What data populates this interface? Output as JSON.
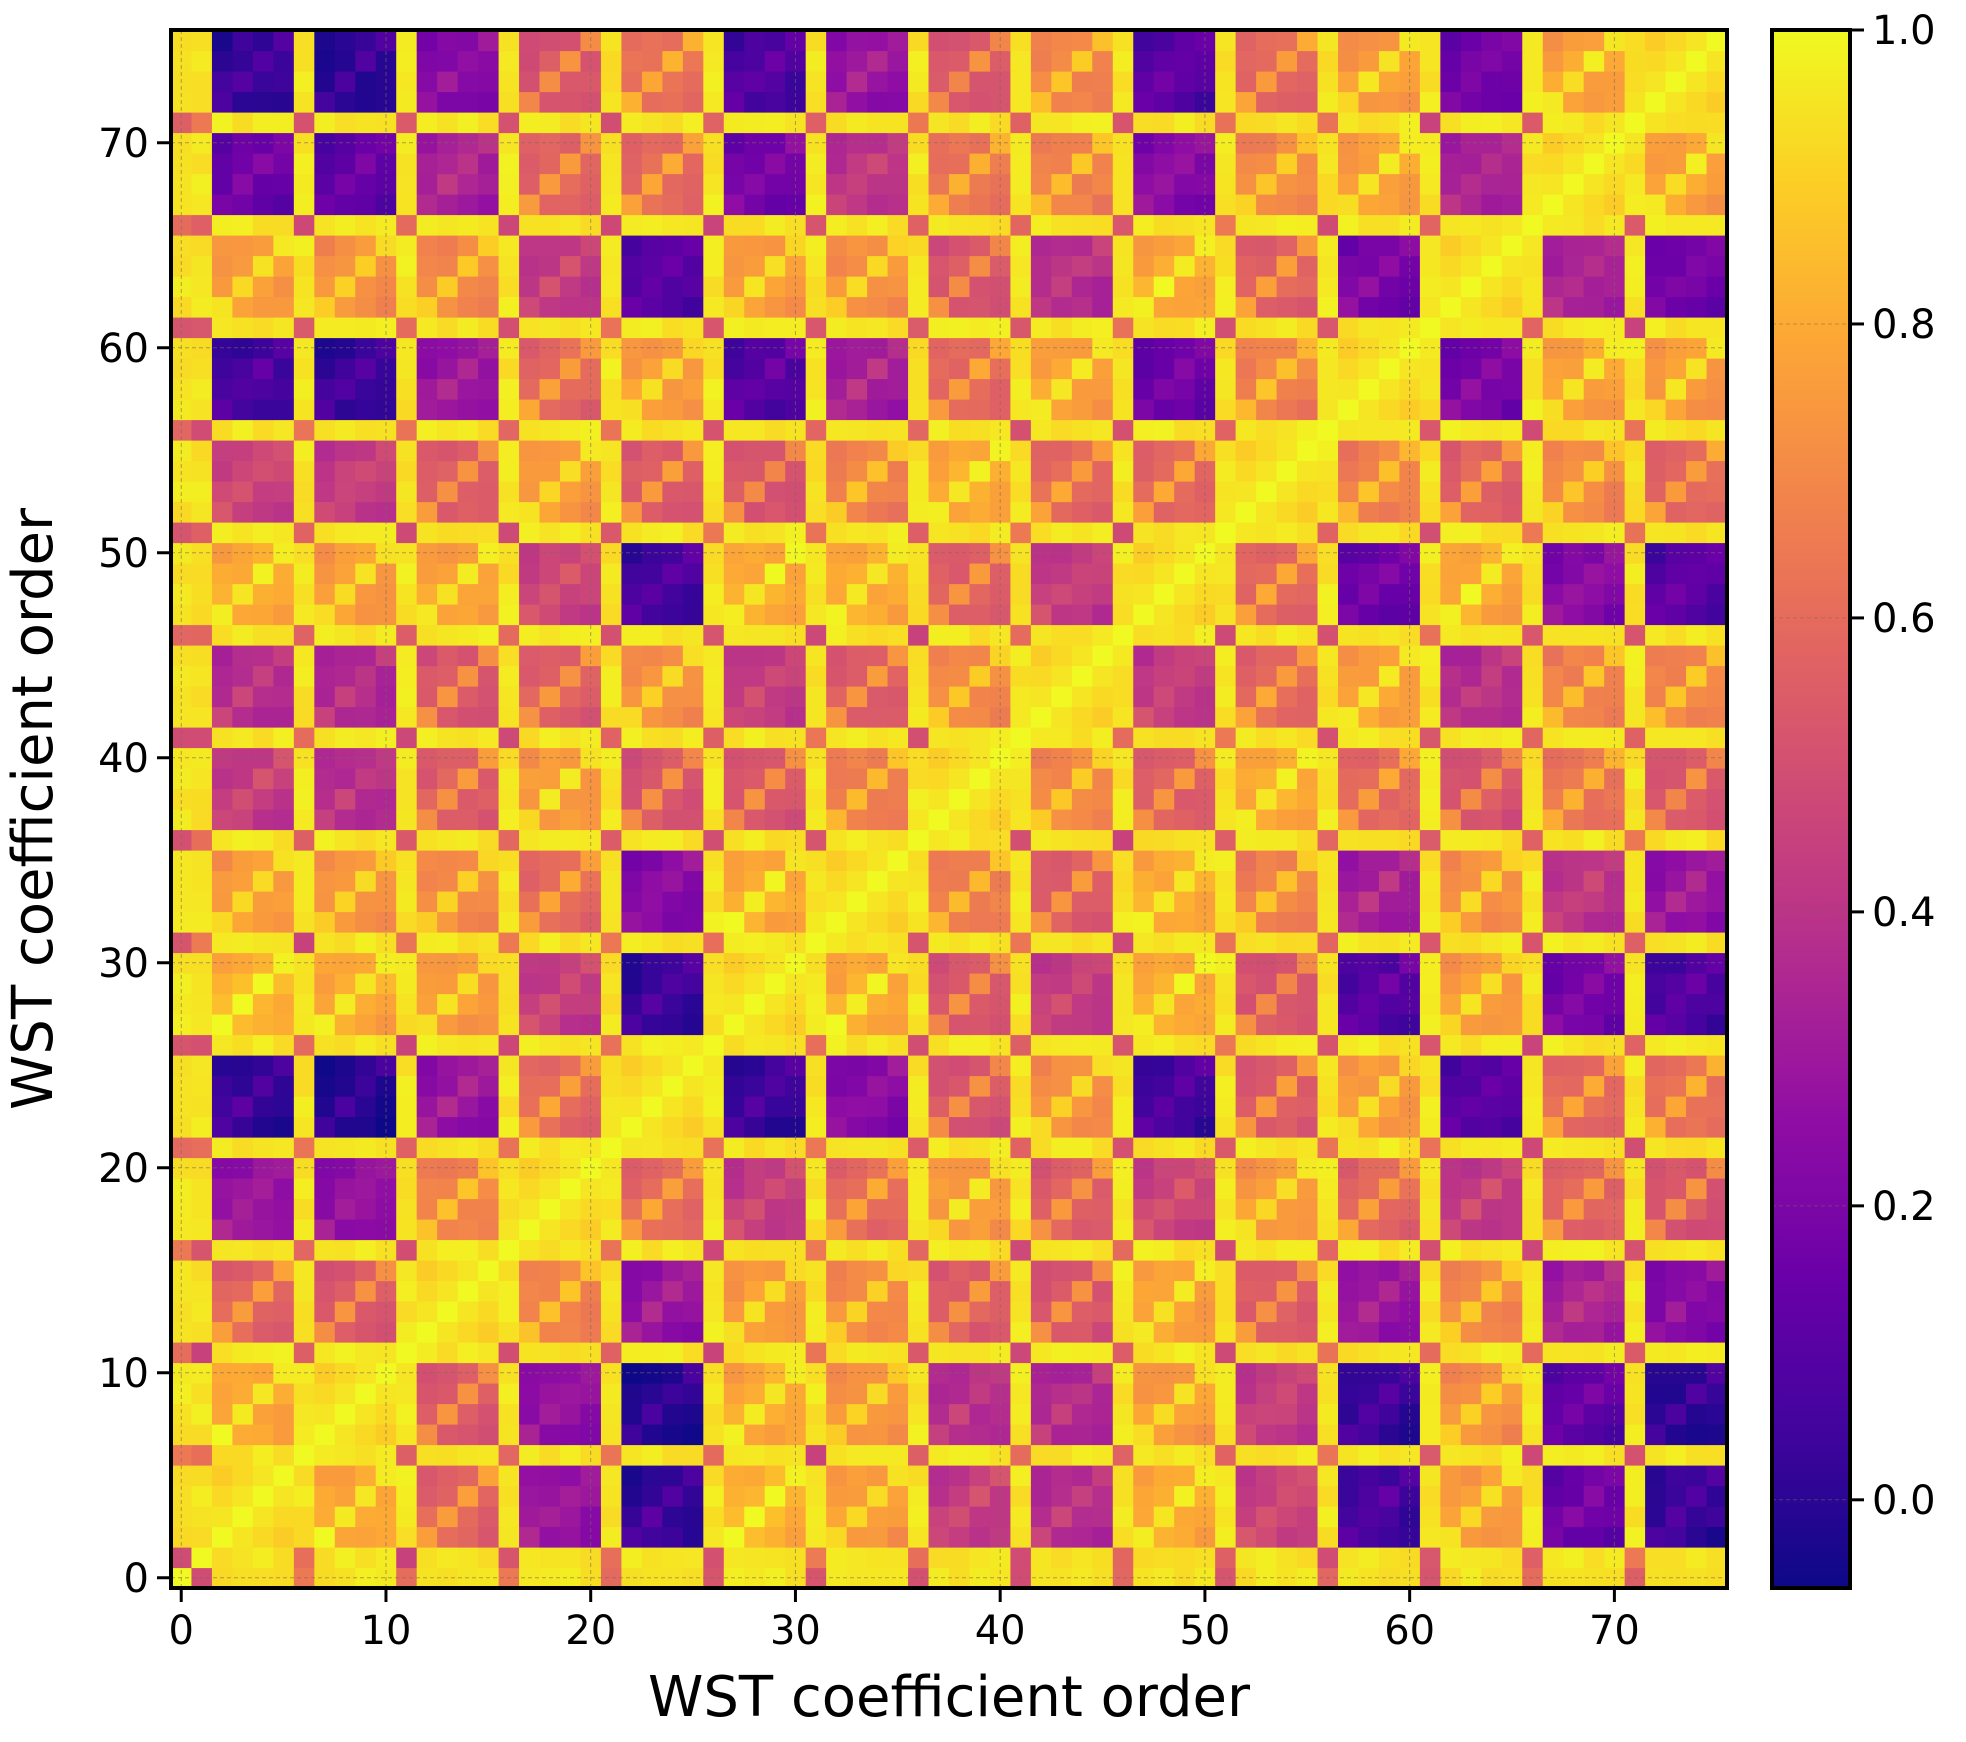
{
  "chart_data": {
    "type": "heatmap",
    "title": "",
    "xlabel": "WST coefficient order",
    "ylabel": "WST coefficient order",
    "n": 76,
    "xlim": [
      -0.5,
      75.5
    ],
    "ylim": [
      -0.5,
      75.5
    ],
    "x_ticks": [
      0,
      10,
      20,
      30,
      40,
      50,
      60,
      70
    ],
    "y_ticks": [
      0,
      10,
      20,
      30,
      40,
      50,
      60,
      70
    ],
    "x_tick_labels": [
      "0",
      "10",
      "20",
      "30",
      "40",
      "50",
      "60",
      "70"
    ],
    "y_tick_labels": [
      "0",
      "10",
      "20",
      "30",
      "40",
      "50",
      "60",
      "70"
    ],
    "grid": true,
    "colormap": "plasma",
    "colorbar": {
      "vmin": -0.06,
      "vmax": 1.0,
      "ticks": [
        0.0,
        0.2,
        0.4,
        0.6,
        0.8,
        1.0
      ],
      "tick_labels": [
        "0.0",
        "0.2",
        "0.4",
        "0.6",
        "0.8",
        "1.0"
      ]
    },
    "block_structure": {
      "singleton_indices": [
        0,
        1,
        6,
        11,
        16,
        21,
        26,
        31,
        36,
        41,
        46,
        51,
        56,
        61,
        66,
        71
      ],
      "group_starts": [
        2,
        7,
        12,
        17,
        22,
        27,
        32,
        37,
        42,
        47,
        52,
        57,
        62,
        67,
        72
      ],
      "group_size": 4,
      "group_pair_correlation": [
        [
          1.0,
          0.82,
          0.6,
          0.3,
          0.05,
          0.85,
          0.78,
          0.45,
          0.4,
          0.82,
          0.48,
          0.08,
          0.78,
          0.18,
          0.05
        ],
        [
          0.82,
          1.0,
          0.58,
          0.28,
          0.02,
          0.82,
          0.75,
          0.4,
          0.38,
          0.78,
          0.45,
          0.05,
          0.75,
          0.15,
          0.03
        ],
        [
          0.6,
          0.58,
          1.0,
          0.7,
          0.3,
          0.78,
          0.74,
          0.58,
          0.55,
          0.8,
          0.58,
          0.3,
          0.72,
          0.35,
          0.25
        ],
        [
          0.3,
          0.28,
          0.7,
          1.0,
          0.62,
          0.45,
          0.62,
          0.78,
          0.58,
          0.48,
          0.78,
          0.62,
          0.45,
          0.6,
          0.55
        ],
        [
          0.05,
          0.02,
          0.3,
          0.62,
          1.0,
          0.05,
          0.25,
          0.55,
          0.75,
          0.08,
          0.58,
          0.78,
          0.12,
          0.62,
          0.65
        ],
        [
          0.85,
          0.82,
          0.78,
          0.45,
          0.05,
          1.0,
          0.82,
          0.55,
          0.45,
          0.82,
          0.55,
          0.12,
          0.78,
          0.2,
          0.1
        ],
        [
          0.78,
          0.75,
          0.74,
          0.62,
          0.25,
          0.82,
          1.0,
          0.7,
          0.58,
          0.82,
          0.7,
          0.35,
          0.75,
          0.42,
          0.3
        ],
        [
          0.45,
          0.4,
          0.58,
          0.78,
          0.55,
          0.55,
          0.7,
          1.0,
          0.72,
          0.58,
          0.82,
          0.62,
          0.55,
          0.65,
          0.55
        ],
        [
          0.4,
          0.38,
          0.55,
          0.58,
          0.75,
          0.45,
          0.58,
          0.72,
          1.0,
          0.45,
          0.62,
          0.8,
          0.4,
          0.7,
          0.7
        ],
        [
          0.82,
          0.78,
          0.8,
          0.48,
          0.08,
          0.82,
          0.82,
          0.58,
          0.45,
          1.0,
          0.62,
          0.18,
          0.82,
          0.25,
          0.12
        ],
        [
          0.48,
          0.45,
          0.58,
          0.78,
          0.58,
          0.55,
          0.7,
          0.82,
          0.62,
          0.62,
          1.0,
          0.7,
          0.6,
          0.72,
          0.62
        ],
        [
          0.08,
          0.05,
          0.3,
          0.62,
          0.78,
          0.12,
          0.35,
          0.62,
          0.8,
          0.18,
          0.7,
          1.0,
          0.22,
          0.8,
          0.78
        ],
        [
          0.78,
          0.75,
          0.72,
          0.45,
          0.12,
          0.78,
          0.75,
          0.55,
          0.4,
          0.82,
          0.6,
          0.22,
          1.0,
          0.35,
          0.2
        ],
        [
          0.18,
          0.15,
          0.35,
          0.6,
          0.62,
          0.2,
          0.42,
          0.65,
          0.7,
          0.25,
          0.72,
          0.8,
          0.35,
          1.0,
          0.8
        ],
        [
          0.05,
          0.03,
          0.25,
          0.55,
          0.65,
          0.1,
          0.3,
          0.55,
          0.7,
          0.12,
          0.62,
          0.78,
          0.2,
          0.8,
          1.0
        ]
      ]
    }
  }
}
